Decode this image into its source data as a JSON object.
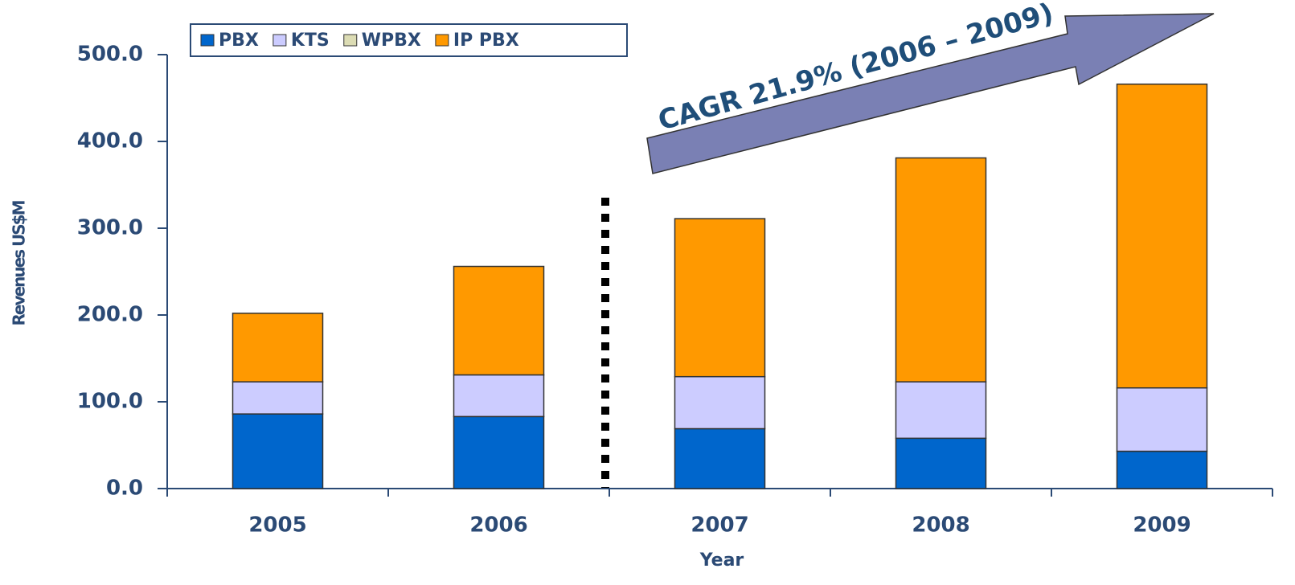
{
  "chart_data": {
    "type": "stacked_bar",
    "categories": [
      "2005",
      "2006",
      "2007",
      "2008",
      "2009"
    ],
    "series": [
      {
        "name": "PBX",
        "color": "#0066cc",
        "values": [
          86,
          83,
          69,
          58,
          43
        ]
      },
      {
        "name": "KTS",
        "color": "#ccccff",
        "values": [
          37,
          48,
          60,
          65,
          73
        ]
      },
      {
        "name": "WPBX",
        "color": "#dcdcb4",
        "values": [
          0,
          0,
          0,
          0,
          0
        ]
      },
      {
        "name": "IP PBX",
        "color": "#ff9900",
        "values": [
          79,
          125,
          182,
          258,
          350
        ]
      }
    ],
    "ylim": [
      0,
      500
    ],
    "yticks": [
      {
        "value": 0,
        "label": "0.0"
      },
      {
        "value": 100,
        "label": "100.0"
      },
      {
        "value": 200,
        "label": "200.0"
      },
      {
        "value": 300,
        "label": "300.0"
      },
      {
        "value": 400,
        "label": "400.0"
      },
      {
        "value": 500,
        "label": "500.0"
      }
    ],
    "y_label": "Revenues US$M",
    "x_label": "Year",
    "annotation": "CAGR 21.9% (2006 – 2009)",
    "legend": "top-left"
  }
}
